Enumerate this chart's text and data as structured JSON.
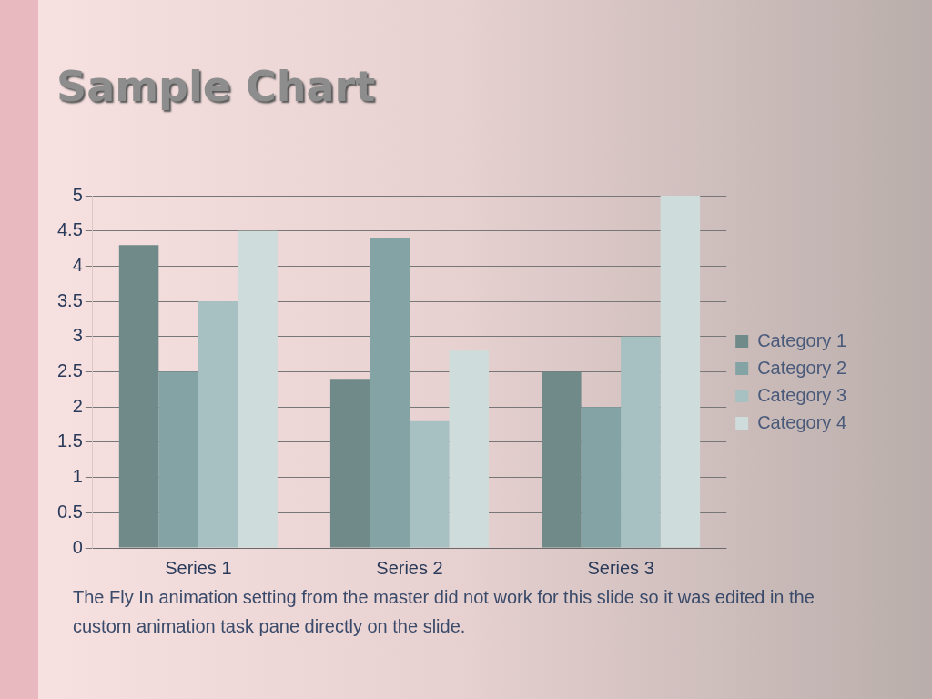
{
  "chart_data": {
    "type": "bar",
    "title": "Sample Chart",
    "categories": [
      "Series 1",
      "Series 2",
      "Series 3"
    ],
    "series": [
      {
        "name": "Category 1",
        "color": "#6f8a88",
        "values": [
          4.3,
          2.4,
          2.5
        ]
      },
      {
        "name": "Category 2",
        "color": "#83a3a5",
        "values": [
          2.5,
          4.4,
          2.0
        ]
      },
      {
        "name": "Category 3",
        "color": "#a7c0c1",
        "values": [
          3.5,
          1.8,
          3.0
        ]
      },
      {
        "name": "Category 4",
        "color": "#cfdcdc",
        "values": [
          4.5,
          2.8,
          5.0
        ]
      }
    ],
    "ylim": [
      0,
      5
    ],
    "yticks": [
      0,
      0.5,
      1,
      1.5,
      2,
      2.5,
      3,
      3.5,
      4,
      4.5,
      5
    ],
    "grid": "y",
    "legend": "right",
    "annotations": [
      "The Fly In animation setting from the master did not work for this slide so it was edited in the custom animation task pane directly on the slide."
    ]
  }
}
